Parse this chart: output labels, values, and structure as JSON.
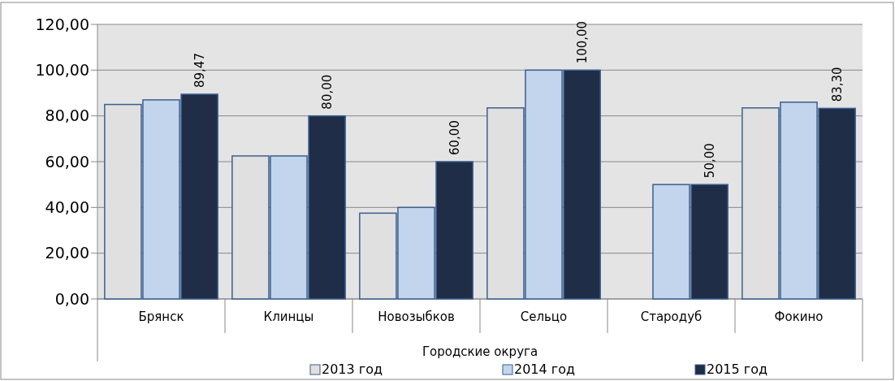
{
  "chart_data": {
    "type": "bar",
    "xlabel": "Городские округа",
    "categories": [
      "Брянск",
      "Клинцы",
      "Новозыбков",
      "Сельцо",
      "Стародуб",
      "Фокино"
    ],
    "series": [
      {
        "name": "2013 год",
        "color": "#e0e0e0",
        "values": [
          85,
          62.5,
          37.5,
          83.5,
          null,
          83.5
        ]
      },
      {
        "name": "2014 год",
        "color": "#c3d5ec",
        "values": [
          87,
          62.5,
          40,
          100,
          50,
          86
        ]
      },
      {
        "name": "2015 год",
        "color": "#1f2d47",
        "values": [
          89.47,
          80,
          60,
          100,
          50,
          83.3
        ],
        "value_labels": [
          "89,47",
          "80,00",
          "60,00",
          "100,00",
          "50,00",
          "83,30"
        ]
      }
    ],
    "ylim": [
      0,
      120
    ],
    "yticks": [
      {
        "value": 0,
        "label": "0,00"
      },
      {
        "value": 20,
        "label": "20,00"
      },
      {
        "value": 40,
        "label": "40,00"
      },
      {
        "value": 60,
        "label": "60,00"
      },
      {
        "value": 80,
        "label": "80,00"
      },
      {
        "value": 100,
        "label": "100,00"
      },
      {
        "value": 120,
        "label": "120,00"
      }
    ],
    "grid": "y",
    "legend": "bottom"
  }
}
